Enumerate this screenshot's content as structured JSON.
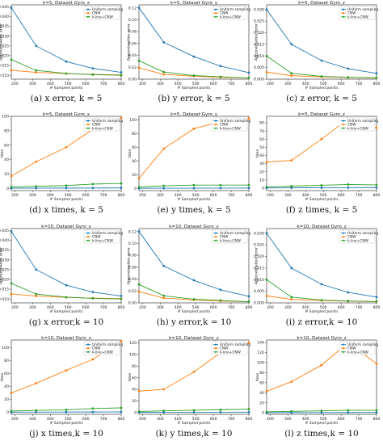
{
  "colors": {
    "uniform": "#1f77b4",
    "cnw": "#ff7f0e",
    "kline": "#2ca02c"
  },
  "legend": [
    "Uniform sampling",
    "CNW",
    "k-line+CNW"
  ],
  "chart_data": [
    {
      "type": "line",
      "title": "k=5, Dataset Gyro_x",
      "xlabel": "# Sampled points",
      "ylabel": "Approximation error",
      "caption": "(a)  x error, k = 5",
      "xlim": [
        180,
        800
      ],
      "ylim": [
        0.008,
        0.046
      ],
      "xticks": [
        "200",
        "300",
        "400",
        "500",
        "600",
        "700",
        "800"
      ],
      "xtick_values": [
        200,
        300,
        400,
        500,
        600,
        700,
        800
      ],
      "yticks": [
        "0.010",
        "0.015",
        "0.020",
        "0.025",
        "0.030",
        "0.035",
        "0.040",
        "0.045"
      ],
      "ytick_values": [
        0.01,
        0.015,
        0.02,
        0.025,
        0.03,
        0.035,
        0.04,
        0.045
      ],
      "x": [
        180,
        320,
        490,
        640,
        800
      ],
      "series": [
        {
          "name": "Uniform sampling",
          "values": [
            0.0445,
            0.025,
            0.017,
            0.0135,
            0.0115
          ]
        },
        {
          "name": "CNW",
          "values": [
            0.0125,
            0.0115,
            0.0108,
            0.0104,
            0.0102
          ]
        },
        {
          "name": "k-line+CNW",
          "values": [
            0.018,
            0.0125,
            0.0109,
            0.0103,
            0.01
          ]
        }
      ]
    },
    {
      "type": "line",
      "title": "k=5, Dataset Gyro_y",
      "xlabel": "# Sampled points",
      "ylabel": "Approximation error",
      "caption": "(b)  y error, k = 5",
      "xlim": [
        180,
        800
      ],
      "ylim": [
        0.0,
        0.125
      ],
      "xticks": [
        "200",
        "300",
        "400",
        "500",
        "600",
        "700",
        "800"
      ],
      "xtick_values": [
        200,
        300,
        400,
        500,
        600,
        700,
        800
      ],
      "yticks": [
        "0.00",
        "0.02",
        "0.04",
        "0.06",
        "0.08",
        "0.10",
        "0.12"
      ],
      "ytick_values": [
        0.0,
        0.02,
        0.04,
        0.06,
        0.08,
        0.1,
        0.12
      ],
      "x": [
        180,
        320,
        490,
        640,
        800
      ],
      "series": [
        {
          "name": "Uniform sampling",
          "values": [
            0.12,
            0.062,
            0.038,
            0.022,
            0.011
          ]
        },
        {
          "name": "CNW",
          "values": [
            0.019,
            0.008,
            0.005,
            0.003,
            0.002
          ]
        },
        {
          "name": "k-line+CNW",
          "values": [
            0.031,
            0.012,
            0.006,
            0.004,
            0.002
          ]
        }
      ]
    },
    {
      "type": "line",
      "title": "k=5, Dataset Gyro_z",
      "xlabel": "# Sampled points",
      "ylabel": "Approximation error",
      "caption": "(c)  z error, k = 5",
      "xlim": [
        180,
        800
      ],
      "ylim": [
        0.0,
        0.032
      ],
      "xticks": [
        "200",
        "300",
        "400",
        "500",
        "600",
        "700",
        "800"
      ],
      "xtick_values": [
        200,
        300,
        400,
        500,
        600,
        700,
        800
      ],
      "yticks": [
        "0.000",
        "0.005",
        "0.010",
        "0.015",
        "0.020",
        "0.025",
        "0.030"
      ],
      "ytick_values": [
        0.0,
        0.005,
        0.01,
        0.015,
        0.02,
        0.025,
        0.03
      ],
      "x": [
        180,
        320,
        490,
        640,
        800
      ],
      "series": [
        {
          "name": "Uniform sampling",
          "values": [
            0.03,
            0.015,
            0.008,
            0.0045,
            0.0025
          ]
        },
        {
          "name": "CNW",
          "values": [
            0.003,
            0.0015,
            0.001,
            0.0007,
            0.0005
          ]
        },
        {
          "name": "k-line+CNW",
          "values": [
            0.01,
            0.0025,
            0.0012,
            0.0008,
            0.0006
          ]
        }
      ]
    },
    {
      "type": "line",
      "title": "k=5, Dataset Gyro_x",
      "xlabel": "# Sampled points",
      "ylabel": "time",
      "caption": "(d)  x times, k = 5",
      "xlim": [
        180,
        800
      ],
      "ylim": [
        -3,
        100
      ],
      "xticks": [
        "200",
        "300",
        "400",
        "500",
        "600",
        "700",
        "800"
      ],
      "xtick_values": [
        200,
        300,
        400,
        500,
        600,
        700,
        800
      ],
      "yticks": [
        "0",
        "20",
        "40",
        "60",
        "80",
        "100"
      ],
      "ytick_values": [
        0,
        20,
        40,
        60,
        80,
        100
      ],
      "x": [
        180,
        320,
        490,
        640,
        800
      ],
      "series": [
        {
          "name": "Uniform sampling",
          "values": [
            0.3,
            0.4,
            0.5,
            0.6,
            0.7
          ]
        },
        {
          "name": "CNW",
          "values": [
            17,
            37,
            57,
            82,
            98
          ]
        },
        {
          "name": "k-line+CNW",
          "values": [
            2,
            3,
            4,
            6,
            7
          ]
        }
      ]
    },
    {
      "type": "line",
      "title": "k=5, Dataset Gyro_y",
      "xlabel": "# Sampled points",
      "ylabel": "time",
      "caption": "(e)  y times, k = 5",
      "xlim": [
        180,
        800
      ],
      "ylim": [
        -3,
        105
      ],
      "xticks": [
        "200",
        "300",
        "400",
        "500",
        "600",
        "700",
        "800"
      ],
      "xtick_values": [
        200,
        300,
        400,
        500,
        600,
        700,
        800
      ],
      "yticks": [
        "0",
        "20",
        "40",
        "60",
        "80",
        "100"
      ],
      "ytick_values": [
        0,
        20,
        40,
        60,
        80,
        100
      ],
      "x": [
        180,
        320,
        490,
        640,
        800
      ],
      "series": [
        {
          "name": "Uniform sampling",
          "values": [
            0.3,
            0.4,
            0.5,
            0.6,
            0.7
          ]
        },
        {
          "name": "CNW",
          "values": [
            15,
            58,
            87,
            97,
            102
          ]
        },
        {
          "name": "k-line+CNW",
          "values": [
            2,
            4,
            5,
            5,
            5
          ]
        }
      ]
    },
    {
      "type": "line",
      "title": "k=5, Dataset Gyro_z",
      "xlabel": "# Sampled points",
      "ylabel": "time",
      "caption": "(f)  z times, k = 5",
      "xlim": [
        180,
        800
      ],
      "ylim": [
        -3,
        88
      ],
      "xticks": [
        "200",
        "300",
        "400",
        "500",
        "600",
        "700",
        "800"
      ],
      "xtick_values": [
        200,
        300,
        400,
        500,
        600,
        700,
        800
      ],
      "yticks": [
        "0",
        "10",
        "20",
        "30",
        "40",
        "50",
        "60",
        "70",
        "80"
      ],
      "ytick_values": [
        0,
        10,
        20,
        30,
        40,
        50,
        60,
        70,
        80
      ],
      "x": [
        180,
        320,
        490,
        640,
        800
      ],
      "series": [
        {
          "name": "Uniform sampling",
          "values": [
            0.3,
            0.4,
            0.5,
            0.6,
            0.7
          ]
        },
        {
          "name": "CNW",
          "values": [
            32,
            34,
            60,
            85,
            74
          ]
        },
        {
          "name": "k-line+CNW",
          "values": [
            1.5,
            2.5,
            3.5,
            4.5,
            4
          ]
        }
      ]
    },
    {
      "type": "line",
      "title": "k=10, Dataset Gyro_x",
      "xlabel": "# Sampled points",
      "ylabel": "Approximation error",
      "caption": "(g)  x error,k = 10",
      "xlim": [
        180,
        800
      ],
      "ylim": [
        0.008,
        0.046
      ],
      "xticks": [
        "200",
        "300",
        "400",
        "500",
        "600",
        "700",
        "800"
      ],
      "xtick_values": [
        200,
        300,
        400,
        500,
        600,
        700,
        800
      ],
      "yticks": [
        "0.010",
        "0.015",
        "0.020",
        "0.025",
        "0.030",
        "0.035",
        "0.040",
        "0.045"
      ],
      "ytick_values": [
        0.01,
        0.015,
        0.02,
        0.025,
        0.03,
        0.035,
        0.04,
        0.045
      ],
      "x": [
        180,
        320,
        490,
        640,
        800
      ],
      "series": [
        {
          "name": "Uniform sampling",
          "values": [
            0.0445,
            0.025,
            0.017,
            0.0135,
            0.0115
          ]
        },
        {
          "name": "CNW",
          "values": [
            0.0125,
            0.0115,
            0.0108,
            0.0104,
            0.0102
          ]
        },
        {
          "name": "k-line+CNW",
          "values": [
            0.018,
            0.0125,
            0.0109,
            0.0103,
            0.01
          ]
        }
      ]
    },
    {
      "type": "line",
      "title": "k=10, Dataset Gyro_y",
      "xlabel": "# Sampled points",
      "ylabel": "Approximation error",
      "caption": "(h)  y error,k = 10",
      "xlim": [
        180,
        800
      ],
      "ylim": [
        0.0,
        0.125
      ],
      "xticks": [
        "200",
        "300",
        "400",
        "500",
        "600",
        "700",
        "800"
      ],
      "xtick_values": [
        200,
        300,
        400,
        500,
        600,
        700,
        800
      ],
      "yticks": [
        "0.00",
        "0.02",
        "0.04",
        "0.06",
        "0.08",
        "0.10",
        "0.12"
      ],
      "ytick_values": [
        0.0,
        0.02,
        0.04,
        0.06,
        0.08,
        0.1,
        0.12
      ],
      "x": [
        180,
        320,
        490,
        640,
        800
      ],
      "series": [
        {
          "name": "Uniform sampling",
          "values": [
            0.12,
            0.062,
            0.038,
            0.022,
            0.011
          ]
        },
        {
          "name": "CNW",
          "values": [
            0.019,
            0.008,
            0.005,
            0.003,
            0.002
          ]
        },
        {
          "name": "k-line+CNW",
          "values": [
            0.031,
            0.012,
            0.006,
            0.004,
            0.002
          ]
        }
      ]
    },
    {
      "type": "line",
      "title": "k=10, Dataset Gyro_z",
      "xlabel": "# Sampled points",
      "ylabel": "Approximation error",
      "caption": "(i)  z error,k = 10",
      "xlim": [
        180,
        800
      ],
      "ylim": [
        0.0,
        0.032
      ],
      "xticks": [
        "200",
        "300",
        "400",
        "500",
        "600",
        "700",
        "800"
      ],
      "xtick_values": [
        200,
        300,
        400,
        500,
        600,
        700,
        800
      ],
      "yticks": [
        "0.000",
        "0.005",
        "0.010",
        "0.015",
        "0.020",
        "0.025",
        "0.030"
      ],
      "ytick_values": [
        0.0,
        0.005,
        0.01,
        0.015,
        0.02,
        0.025,
        0.03
      ],
      "x": [
        180,
        320,
        490,
        640,
        800
      ],
      "series": [
        {
          "name": "Uniform sampling",
          "values": [
            0.03,
            0.015,
            0.008,
            0.0045,
            0.0025
          ]
        },
        {
          "name": "CNW",
          "values": [
            0.003,
            0.0015,
            0.001,
            0.0007,
            0.0005
          ]
        },
        {
          "name": "k-line+CNW",
          "values": [
            0.01,
            0.0025,
            0.0012,
            0.0008,
            0.0006
          ]
        }
      ]
    },
    {
      "type": "line",
      "title": "k=10, Dataset Gyro_x",
      "xlabel": "# Sampled points",
      "ylabel": "time",
      "caption": "(j)  x times,k = 10",
      "xlim": [
        180,
        800
      ],
      "ylim": [
        -3,
        112
      ],
      "xticks": [
        "200",
        "300",
        "400",
        "500",
        "600",
        "700",
        "800"
      ],
      "xtick_values": [
        200,
        300,
        400,
        500,
        600,
        700,
        800
      ],
      "yticks": [
        "0",
        "20",
        "40",
        "60",
        "80",
        "100"
      ],
      "ytick_values": [
        0,
        20,
        40,
        60,
        80,
        100
      ],
      "x": [
        180,
        320,
        490,
        640,
        800
      ],
      "series": [
        {
          "name": "Uniform sampling",
          "values": [
            0.3,
            0.4,
            0.5,
            0.6,
            0.7
          ]
        },
        {
          "name": "CNW",
          "values": [
            30,
            45,
            65,
            82,
            110
          ]
        },
        {
          "name": "k-line+CNW",
          "values": [
            2,
            3,
            4,
            6,
            7
          ]
        }
      ]
    },
    {
      "type": "line",
      "title": "k=10, Dataset Gyro_y",
      "xlabel": "# Sampled points",
      "ylabel": "time",
      "caption": "(k)  y times,k = 10",
      "xlim": [
        180,
        800
      ],
      "ylim": [
        -3,
        125
      ],
      "xticks": [
        "200",
        "300",
        "400",
        "500",
        "600",
        "700",
        "800"
      ],
      "xtick_values": [
        200,
        300,
        400,
        500,
        600,
        700,
        800
      ],
      "yticks": [
        "0",
        "20",
        "40",
        "60",
        "80",
        "100",
        "120"
      ],
      "ytick_values": [
        0,
        20,
        40,
        60,
        80,
        100,
        120
      ],
      "x": [
        180,
        320,
        490,
        640,
        800
      ],
      "series": [
        {
          "name": "Uniform sampling",
          "values": [
            0.3,
            0.4,
            0.5,
            0.6,
            0.7
          ]
        },
        {
          "name": "CNW",
          "values": [
            37,
            40,
            70,
            103,
            120
          ]
        },
        {
          "name": "k-line+CNW",
          "values": [
            2,
            3,
            4,
            5,
            6
          ]
        }
      ]
    },
    {
      "type": "line",
      "title": "k=10, Dataset Gyro_z",
      "xlabel": "# Sampled points",
      "ylabel": "time",
      "caption": "(l)  z times,k = 10",
      "xlim": [
        180,
        800
      ],
      "ylim": [
        -3,
        145
      ],
      "xticks": [
        "200",
        "300",
        "400",
        "500",
        "600",
        "700",
        "800"
      ],
      "xtick_values": [
        200,
        300,
        400,
        500,
        600,
        700,
        800
      ],
      "yticks": [
        "0",
        "20",
        "40",
        "60",
        "80",
        "100",
        "120",
        "140"
      ],
      "ytick_values": [
        0,
        20,
        40,
        60,
        80,
        100,
        120,
        140
      ],
      "x": [
        180,
        320,
        490,
        640,
        800
      ],
      "series": [
        {
          "name": "Uniform sampling",
          "values": [
            0.3,
            0.4,
            0.5,
            0.6,
            0.7
          ]
        },
        {
          "name": "CNW",
          "values": [
            43,
            62,
            95,
            140,
            98
          ]
        },
        {
          "name": "k-line+CNW",
          "values": [
            2,
            3,
            4,
            5,
            5
          ]
        }
      ]
    }
  ]
}
